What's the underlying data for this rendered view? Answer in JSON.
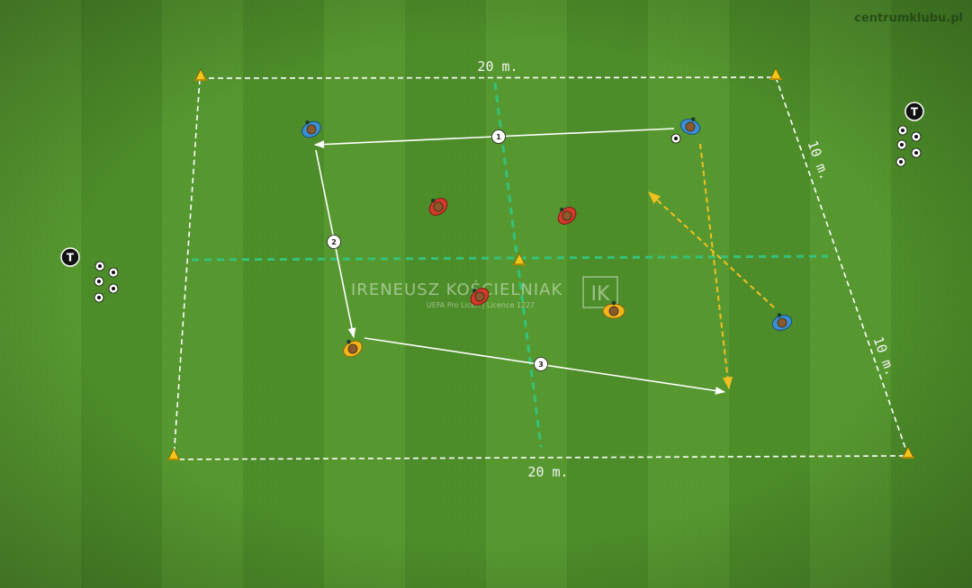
{
  "site_label": "centrumklubu.pl",
  "dimensions": {
    "top": "20 m.",
    "bottom": "20 m.",
    "right_upper": "10 m.",
    "right_lower": "10 m."
  },
  "watermark": {
    "name": "IRENEUSZ KOŚCIELNIAK",
    "licence": "UEFA Pro Licen  |  Licence 1227",
    "logo": "IK"
  },
  "pass_numbers": [
    "1",
    "2",
    "3"
  ],
  "coach_label": "T",
  "colors": {
    "grass_dark": "#4a8a27",
    "grass_light": "#5a9c32",
    "boundary": "#ffffff",
    "zone_line": "#34c27a",
    "run_arrow": "#f0c020",
    "team_blue": "#3a8fd0",
    "team_red": "#d23a2a",
    "team_yellow": "#f2b51c",
    "cone": "#f5c518"
  },
  "players": {
    "blue": 3,
    "red": 3,
    "yellow": 2
  }
}
